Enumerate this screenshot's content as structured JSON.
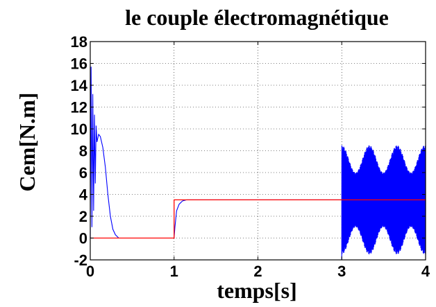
{
  "chart_data": {
    "type": "line",
    "title": "le couple électromagnétique",
    "xlabel": "temps[s]",
    "ylabel": "Cem[N.m]",
    "xlim": [
      0,
      4
    ],
    "ylim": [
      -2,
      18
    ],
    "xticks": [
      "0",
      "1",
      "2",
      "3",
      "4"
    ],
    "yticks": [
      "-2",
      "0",
      "2",
      "4",
      "6",
      "8",
      "10",
      "12",
      "14",
      "16",
      "18"
    ],
    "grid": true,
    "colors": {
      "blue_series": "#0000ff",
      "red_series": "#ff0000"
    },
    "series": [
      {
        "color": "#0000ff",
        "x": [
          0,
          0.01,
          0.02,
          0.03,
          0.04,
          0.05,
          0.06,
          0.07,
          0.08,
          0.1,
          0.12,
          0.15,
          0.18,
          0.21,
          0.24,
          0.27,
          0.3,
          0.34,
          0.4,
          1.0,
          1.01,
          1.03,
          1.06,
          1.1,
          1.15,
          1.2,
          1.3,
          3.0
        ],
        "y": [
          0,
          15.7,
          1.0,
          13.2,
          2.5,
          11.3,
          5.0,
          10.3,
          8.8,
          9.5,
          9.3,
          8.3,
          6.5,
          4.0,
          2.0,
          0.8,
          0.3,
          0.0,
          0.0,
          0.0,
          1.0,
          2.5,
          3.1,
          3.4,
          3.5,
          3.5,
          3.5,
          3.5
        ],
        "oscillation": {
          "x_start": 3.0,
          "x_end": 4.0,
          "center": 3.5,
          "amplitude_max": 5.0,
          "amplitude_min": 2.5,
          "envelope_period": 0.33
        }
      },
      {
        "color": "#ff0000",
        "x": [
          0,
          1.0,
          1.0,
          4.0
        ],
        "y": [
          0,
          0,
          3.5,
          3.5
        ]
      }
    ]
  }
}
